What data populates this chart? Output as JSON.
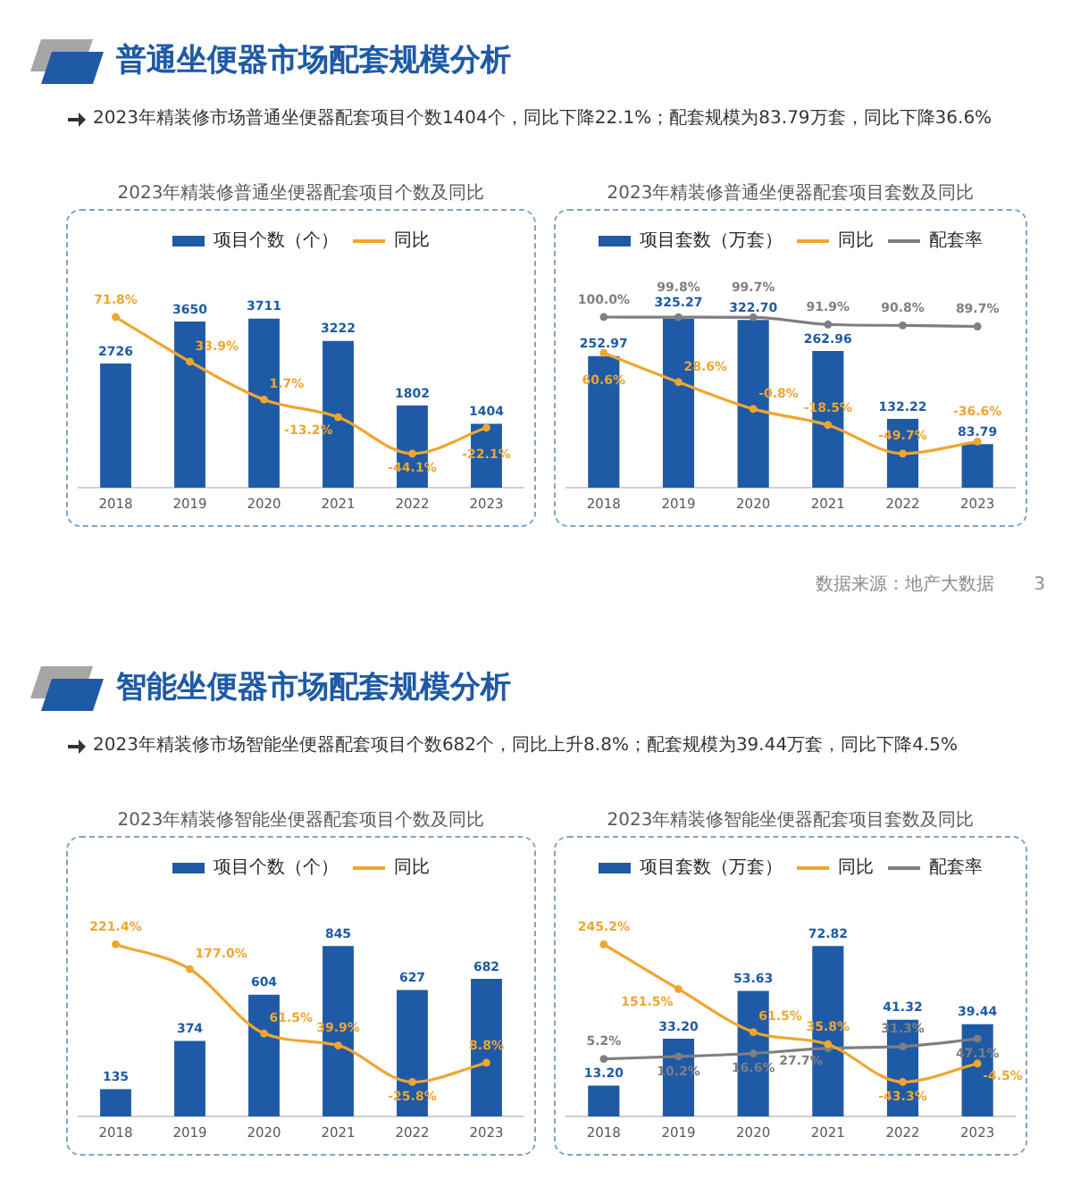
{
  "chart_data": [
    {
      "type": "other",
      "title": "普通坐便器市场配套规模分析",
      "subtitle": "2023年精装修市场普通坐便器配套项目个数1404个，同比下降22.1%；配套规模为83.79万套，同比下降36.6%"
    },
    {
      "type": "bar",
      "title": "2023年精装修普通坐便器配套项目个数及同比",
      "categories": [
        "2018",
        "2019",
        "2020",
        "2021",
        "2022",
        "2023"
      ],
      "series": [
        {
          "name": "项目个数（个）",
          "color": "#1f5aa6",
          "values": [
            2726,
            3650,
            3711,
            3222,
            1802,
            1404
          ],
          "value_labels": [
            "2726",
            "3650",
            "3711",
            "3222",
            "1802",
            "1404"
          ]
        },
        {
          "name": "同比",
          "type": "line",
          "axis": "y2",
          "color": "#f0a530",
          "values": [
            71.8,
            33.9,
            1.7,
            -13.2,
            -44.1,
            -22.1
          ],
          "value_labels": [
            "71.8%",
            "33.9%",
            "1.7%",
            "-13.2%",
            "-44.1%",
            "-22.1%"
          ]
        }
      ],
      "legend": "top",
      "marker": "circle"
    },
    {
      "type": "bar",
      "title": "2023年精装修普通坐便器配套项目套数及同比",
      "categories": [
        "2018",
        "2019",
        "2020",
        "2021",
        "2022",
        "2023"
      ],
      "series": [
        {
          "name": "项目套数（万套）",
          "color": "#1f5aa6",
          "values": [
            252.97,
            325.27,
            322.7,
            262.96,
            132.22,
            83.79
          ],
          "value_labels": [
            "252.97",
            "325.27",
            "322.70",
            "262.96",
            "132.22",
            "83.79"
          ]
        },
        {
          "name": "同比",
          "type": "line",
          "axis": "y2",
          "color": "#f0a530",
          "values": [
            60.6,
            28.6,
            -0.8,
            -18.5,
            -49.7,
            -36.6
          ],
          "value_labels": [
            "60.6%",
            "28.6%",
            "-0.8%",
            "-18.5%",
            "-49.7%",
            "-36.6%"
          ]
        },
        {
          "name": "配套率",
          "type": "line",
          "axis": "y2",
          "color": "#7f7f7f",
          "values": [
            100.0,
            99.8,
            99.7,
            91.9,
            90.8,
            89.7
          ],
          "value_labels": [
            "100.0%",
            "99.8%",
            "99.7%",
            "91.9%",
            "90.8%",
            "89.7%"
          ]
        }
      ],
      "legend": "top",
      "marker": "circle"
    },
    {
      "type": "other",
      "annotations": [
        "数据来源：地产大数据",
        "3"
      ]
    },
    {
      "type": "other",
      "title": "智能坐便器市场配套规模分析",
      "subtitle": "2023年精装修市场智能坐便器配套项目个数682个，同比上升8.8%；配套规模为39.44万套，同比下降4.5%"
    },
    {
      "type": "bar",
      "title": "2023年精装修智能坐便器配套项目个数及同比",
      "categories": [
        "2018",
        "2019",
        "2020",
        "2021",
        "2022",
        "2023"
      ],
      "series": [
        {
          "name": "项目个数（个）",
          "color": "#1f5aa6",
          "values": [
            135,
            374,
            604,
            845,
            627,
            682
          ],
          "value_labels": [
            "135",
            "374",
            "604",
            "845",
            "627",
            "682"
          ]
        },
        {
          "name": "同比",
          "type": "line",
          "axis": "y2",
          "color": "#f0a530",
          "values": [
            221.4,
            177.0,
            61.5,
            39.9,
            -25.8,
            8.8
          ],
          "value_labels": [
            "221.4%",
            "177.0%",
            "61.5%",
            "39.9%",
            "-25.8%",
            "8.8%"
          ]
        }
      ],
      "legend": "top",
      "marker": "circle"
    },
    {
      "type": "bar",
      "title": "2023年精装修智能坐便器配套项目套数及同比",
      "categories": [
        "2018",
        "2019",
        "2020",
        "2021",
        "2022",
        "2023"
      ],
      "series": [
        {
          "name": "项目套数（万套）",
          "color": "#1f5aa6",
          "values": [
            13.2,
            33.2,
            53.63,
            72.82,
            41.32,
            39.44
          ],
          "value_labels": [
            "13.20",
            "33.20",
            "53.63",
            "72.82",
            "41.32",
            "39.44"
          ]
        },
        {
          "name": "同比",
          "type": "line",
          "axis": "y2",
          "color": "#f0a530",
          "values": [
            245.2,
            151.5,
            61.5,
            35.8,
            -43.3,
            -4.5
          ],
          "value_labels": [
            "245.2%",
            "151.5%",
            "61.5%",
            "35.8%",
            "-43.3%",
            "-4.5%"
          ]
        },
        {
          "name": "配套率",
          "type": "line",
          "axis": "y2",
          "color": "#7f7f7f",
          "values": [
            5.2,
            10.2,
            16.6,
            27.7,
            31.3,
            47.1
          ],
          "value_labels": [
            "5.2%",
            "10.2%",
            "16.6%",
            "27.7%",
            "31.3%",
            "47.1%"
          ]
        }
      ],
      "legend": "top",
      "marker": "circle"
    }
  ]
}
